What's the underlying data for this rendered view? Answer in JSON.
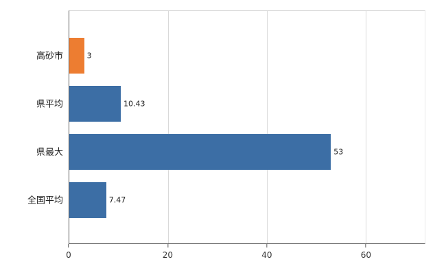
{
  "chart_data": {
    "type": "bar",
    "orientation": "horizontal",
    "title": "",
    "xlabel": "",
    "ylabel": "",
    "categories": [
      "高砂市",
      "県平均",
      "県最大",
      "全国平均"
    ],
    "values": [
      3,
      10.43,
      53,
      7.47
    ],
    "value_labels": [
      "3",
      "10.43",
      "53",
      "7.47"
    ],
    "bar_colors": [
      "#ED7D31",
      "#3C6EA5",
      "#3C6EA5",
      "#3C6EA5"
    ],
    "x_ticks": [
      0,
      20,
      40,
      60
    ],
    "x_tick_labels": [
      "0",
      "20",
      "40",
      "60"
    ],
    "xlim": [
      0,
      72
    ],
    "grid": true,
    "legend": false,
    "colors": {
      "grid": "#d9d9d9",
      "axis": "#595959",
      "background": "#ffffff",
      "highlight_bar": "#ED7D31",
      "default_bar": "#3C6EA5"
    }
  }
}
